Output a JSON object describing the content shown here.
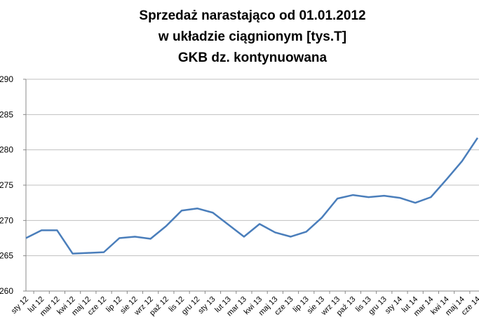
{
  "chart_data": {
    "type": "line",
    "title": [
      "Sprzedaż narastająco od 01.01.2012",
      "w układzie ciągnionym [tys.T]",
      "GKB dz. kontynuowana"
    ],
    "categories": [
      "sty 12",
      "lut 12",
      "mar 12",
      "kwi 12",
      "maj 12",
      "cze 12",
      "lip 12",
      "sie 12",
      "wrz 12",
      "paź 12",
      "lis 12",
      "gru 12",
      "sty 13",
      "lut 13",
      "mar 13",
      "kwi 13",
      "maj 13",
      "cze 13",
      "lip 13",
      "sie 13",
      "wrz 13",
      "paź 13",
      "lis 13",
      "gru 13",
      "sty 14",
      "lut 14",
      "mar 14",
      "kwi 14",
      "maj 14",
      "cze 14"
    ],
    "values": [
      267.5,
      268.6,
      268.6,
      265.3,
      265.4,
      265.5,
      267.5,
      267.7,
      267.4,
      269.2,
      271.4,
      271.7,
      271.1,
      269.4,
      267.7,
      269.5,
      268.3,
      267.7,
      268.4,
      270.4,
      273.1,
      273.6,
      273.3,
      273.5,
      273.2,
      272.5,
      273.3,
      275.8,
      278.4,
      281.7
    ],
    "color": "#4a7ebb",
    "ylim": [
      260,
      290
    ],
    "yticks": [
      260,
      265,
      270,
      275,
      280,
      285,
      290
    ],
    "grid": true
  }
}
